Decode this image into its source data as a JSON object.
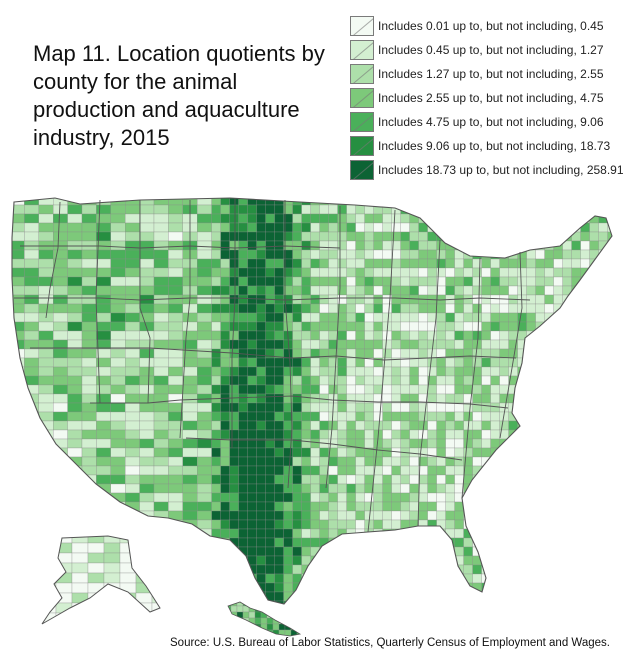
{
  "map": {
    "title": "Map 11. Location quotients by county for the animal production and aquaculture industry, 2015",
    "source": "Source: U.S. Bureau of Labor Statistics, Quarterly Census of Employment and Wages."
  },
  "legend": {
    "items": [
      {
        "label": "Includes 0.01 up to, but not including, 0.45",
        "color": "#f3faf3"
      },
      {
        "label": "Includes 0.45 up to, but not including, 1.27",
        "color": "#d3efd1"
      },
      {
        "label": "Includes 1.27 up to, but not including, 2.55",
        "color": "#addfaa"
      },
      {
        "label": "Includes 2.55 up to, but not including, 4.75",
        "color": "#7dc97a"
      },
      {
        "label": "Includes 4.75 up to, but not including, 9.06",
        "color": "#4ab05a"
      },
      {
        "label": "Includes 9.06 up to, but not including, 18.73",
        "color": "#268f41"
      },
      {
        "label": "Includes 18.73 up to, but not including, 258.91",
        "color": "#0c6334"
      }
    ]
  }
}
